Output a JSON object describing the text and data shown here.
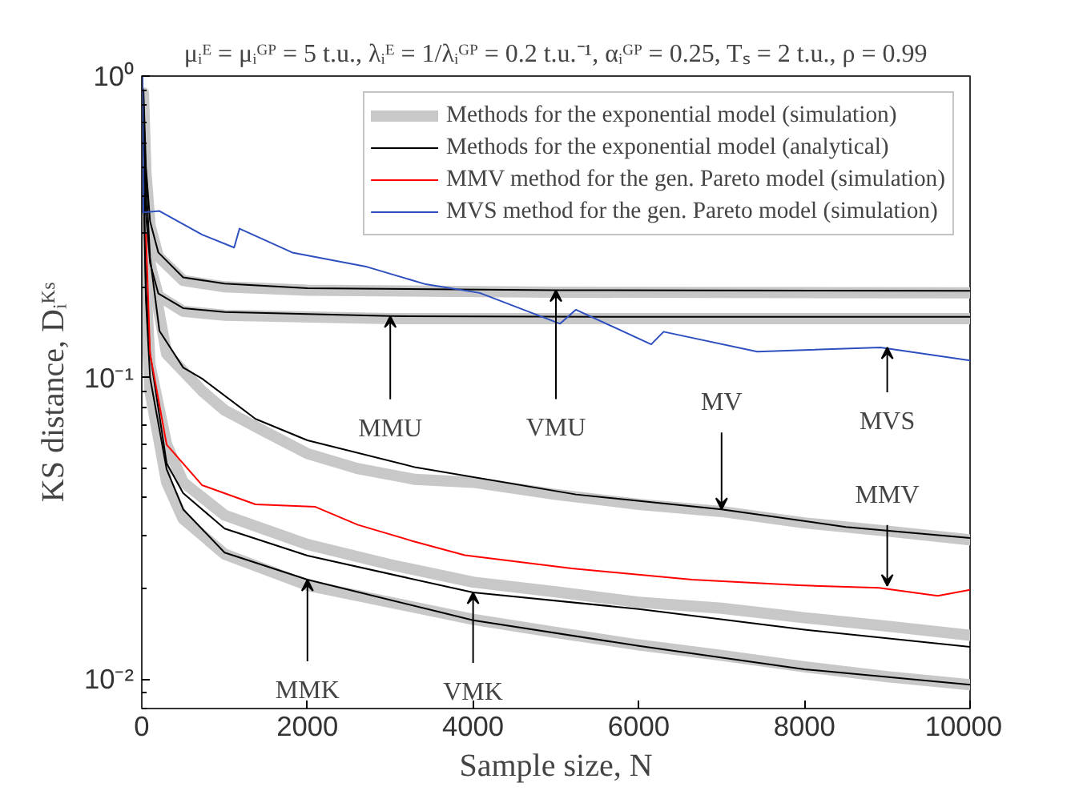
{
  "chart_data": {
    "type": "line",
    "title": "μᵢᴱ = μᵢᴳᴾ = 5 t.u., λᵢᴱ = 1/λᵢᴳᴾ = 0.2 t.u.⁻¹, αᵢᴳᴾ = 0.25, Tₛ = 2 t.u., ρ = 0.99",
    "xlabel": "Sample size, N",
    "ylabel": "KS distance, Dᵢᴷˢ",
    "log": "y",
    "xlim": [
      0,
      10000
    ],
    "ylim": [
      0.008,
      1
    ],
    "xticks": [
      0,
      2000,
      4000,
      6000,
      8000,
      10000
    ],
    "yticks": [
      {
        "value": 0.01,
        "label": "10⁻²"
      },
      {
        "value": 0.1,
        "label": "10⁻¹"
      },
      {
        "value": 1,
        "label": "10⁰"
      }
    ],
    "grid": false,
    "legend": "top right",
    "line_style": "solid",
    "marker": "none",
    "series": [
      {
        "name": "Methods for the exponential model (simulation)",
        "color": "#c8c8c8",
        "x": [
          20,
          50,
          100,
          200,
          500,
          1000,
          3000,
          6000,
          10000
        ],
        "values": [
          0.68,
          0.34,
          0.235,
          0.187,
          0.166,
          0.161,
          0.157,
          0.157,
          0.157
        ]
      },
      {
        "color": "#c8c8c8",
        "x": [
          20,
          50,
          100,
          200,
          500,
          1000,
          2000,
          5000,
          10000
        ],
        "values": [
          0.88,
          0.48,
          0.32,
          0.252,
          0.21,
          0.2,
          0.195,
          0.192,
          0.191
        ]
      },
      {
        "color": "#c8c8c8",
        "x": [
          20,
          50,
          100,
          300,
          735,
          1000,
          1500,
          2000,
          2600,
          3300,
          4000,
          5000,
          6000,
          7000,
          8000,
          9000,
          10000
        ],
        "values": [
          0.78,
          0.44,
          0.24,
          0.12,
          0.09,
          0.078,
          0.066,
          0.056,
          0.05,
          0.046,
          0.045,
          0.041,
          0.038,
          0.036,
          0.033,
          0.031,
          0.029
        ]
      },
      {
        "color": "#c8c8c8",
        "x": [
          20,
          50,
          100,
          300,
          500,
          1000,
          2000,
          3000,
          4000,
          5000,
          6000,
          7000,
          8000,
          9000,
          10000
        ],
        "values": [
          0.5,
          0.2,
          0.11,
          0.06,
          0.045,
          0.035,
          0.028,
          0.024,
          0.021,
          0.0195,
          0.018,
          0.0172,
          0.016,
          0.015,
          0.014
        ]
      },
      {
        "color": "#c8c8c8",
        "x": [
          20,
          50,
          100,
          300,
          500,
          1000,
          2000,
          3000,
          4000,
          5000,
          6000,
          7000,
          8000,
          9000,
          10000
        ],
        "values": [
          0.45,
          0.17,
          0.09,
          0.045,
          0.034,
          0.026,
          0.0205,
          0.018,
          0.0158,
          0.0143,
          0.013,
          0.012,
          0.011,
          0.0102,
          0.0096
        ]
      },
      {
        "name": "Methods for the exponential model (analytical)",
        "color": "#000000",
        "x": [
          20,
          50,
          100,
          200,
          500,
          1000,
          3000,
          6000,
          10000
        ],
        "values": [
          0.7,
          0.35,
          0.24,
          0.19,
          0.17,
          0.165,
          0.16,
          0.159,
          0.159
        ]
      },
      {
        "color": "#000000",
        "x": [
          20,
          50,
          100,
          200,
          500,
          1000,
          2000,
          5000,
          10000
        ],
        "values": [
          0.9,
          0.5,
          0.33,
          0.26,
          0.215,
          0.205,
          0.198,
          0.195,
          0.194
        ]
      },
      {
        "color": "#000000",
        "x": [
          20,
          50,
          100,
          213,
          500,
          735,
          1373,
          2000,
          3308,
          5242,
          7000,
          8500,
          10000
        ],
        "values": [
          0.8,
          0.45,
          0.25,
          0.143,
          0.108,
          0.099,
          0.073,
          0.062,
          0.0504,
          0.041,
          0.0366,
          0.032,
          0.0294
        ]
      },
      {
        "color": "#000000",
        "x": [
          20,
          50,
          100,
          300,
          500,
          1000,
          2000,
          4000,
          6000,
          8000,
          10000
        ],
        "values": [
          0.5,
          0.2,
          0.12,
          0.052,
          0.0414,
          0.0316,
          0.0257,
          0.0194,
          0.0171,
          0.0146,
          0.0128
        ]
      },
      {
        "color": "#000000",
        "x": [
          20,
          50,
          100,
          300,
          500,
          1000,
          2000,
          4000,
          6000,
          8000,
          10000
        ],
        "values": [
          0.45,
          0.18,
          0.1,
          0.0497,
          0.0366,
          0.0263,
          0.0214,
          0.0157,
          0.0129,
          0.0108,
          0.0096
        ]
      },
      {
        "name": "MMV method for the gen. Pareto model (simulation)",
        "color": "#ff0000",
        "x": [
          50,
          100,
          300,
          729,
          1373,
          2095,
          2611,
          3256,
          3900,
          5190,
          6644,
          7933,
          8900,
          9610,
          10000
        ],
        "values": [
          0.3,
          0.12,
          0.06,
          0.044,
          0.038,
          0.0373,
          0.0325,
          0.0288,
          0.0258,
          0.0233,
          0.0214,
          0.0205,
          0.0201,
          0.0189,
          0.0198
        ]
      },
      {
        "name": "MVS method for the gen. Pareto model (simulation)",
        "color": "#2e4fbf",
        "x": [
          10,
          19,
          213,
          729,
          1115,
          1180,
          1817,
          2720,
          3430,
          4080,
          5050,
          5242,
          6150,
          6300,
          7430,
          8917,
          10000
        ],
        "values": [
          1,
          0.353,
          0.357,
          0.298,
          0.27,
          0.312,
          0.26,
          0.233,
          0.204,
          0.191,
          0.151,
          0.168,
          0.129,
          0.142,
          0.122,
          0.126,
          0.114
        ]
      }
    ],
    "annotations": [
      {
        "text": "MMU",
        "x": 3000,
        "y": 0.16
      },
      {
        "text": "VMU",
        "x": 5000,
        "y": 0.195
      },
      {
        "text": "MV",
        "x": 7000,
        "y": 0.0366
      },
      {
        "text": "MVS",
        "x": 9000,
        "y": 0.126
      },
      {
        "text": "MMV",
        "x": 9000,
        "y": 0.0204
      },
      {
        "text": "MMK",
        "x": 2000,
        "y": 0.0214
      },
      {
        "text": "VMK",
        "x": 4000,
        "y": 0.0194
      }
    ]
  }
}
